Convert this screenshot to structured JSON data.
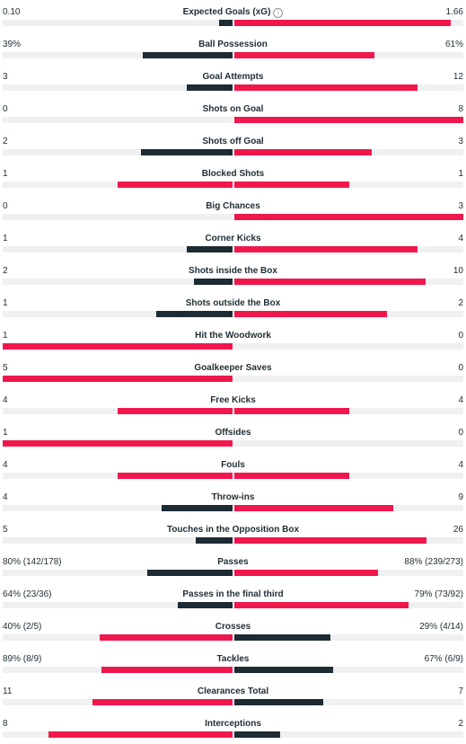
{
  "colors": {
    "better": "#f0174d",
    "worse": "#1d2b33",
    "track": "#eef0f1"
  },
  "stats": [
    {
      "name": "Expected Goals (xG)",
      "home": "0.10",
      "away": "1.66",
      "hv": 0.1,
      "av": 1.66,
      "info": true
    },
    {
      "name": "Ball Possession",
      "home": "39%",
      "away": "61%",
      "hv": 39,
      "av": 61
    },
    {
      "name": "Goal Attempts",
      "home": "3",
      "away": "12",
      "hv": 3,
      "av": 12
    },
    {
      "name": "Shots on Goal",
      "home": "0",
      "away": "8",
      "hv": 0,
      "av": 8
    },
    {
      "name": "Shots off Goal",
      "home": "2",
      "away": "3",
      "hv": 2,
      "av": 3
    },
    {
      "name": "Blocked Shots",
      "home": "1",
      "away": "1",
      "hv": 1,
      "av": 1
    },
    {
      "name": "Big Chances",
      "home": "0",
      "away": "3",
      "hv": 0,
      "av": 3
    },
    {
      "name": "Corner Kicks",
      "home": "1",
      "away": "4",
      "hv": 1,
      "av": 4
    },
    {
      "name": "Shots inside the Box",
      "home": "2",
      "away": "10",
      "hv": 2,
      "av": 10
    },
    {
      "name": "Shots outside the Box",
      "home": "1",
      "away": "2",
      "hv": 1,
      "av": 2
    },
    {
      "name": "Hit the Woodwork",
      "home": "1",
      "away": "0",
      "hv": 1,
      "av": 0
    },
    {
      "name": "Goalkeeper Saves",
      "home": "5",
      "away": "0",
      "hv": 5,
      "av": 0
    },
    {
      "name": "Free Kicks",
      "home": "4",
      "away": "4",
      "hv": 4,
      "av": 4
    },
    {
      "name": "Offsides",
      "home": "1",
      "away": "0",
      "hv": 1,
      "av": 0
    },
    {
      "name": "Fouls",
      "home": "4",
      "away": "4",
      "hv": 4,
      "av": 4
    },
    {
      "name": "Throw-ins",
      "home": "4",
      "away": "9",
      "hv": 4,
      "av": 9
    },
    {
      "name": "Touches in the Opposition Box",
      "home": "5",
      "away": "26",
      "hv": 5,
      "av": 26
    },
    {
      "name": "Passes",
      "home": "80% (142/178)",
      "away": "88% (239/273)",
      "hv": 142,
      "av": 239
    },
    {
      "name": "Passes in the final third",
      "home": "64% (23/36)",
      "away": "79% (73/92)",
      "hv": 23,
      "av": 73
    },
    {
      "name": "Crosses",
      "home": "40% (2/5)",
      "away": "29% (4/14)",
      "hv": 0.4,
      "av": 0.29
    },
    {
      "name": "Tackles",
      "home": "89% (8/9)",
      "away": "67% (6/9)",
      "hv": 0.89,
      "av": 0.67
    },
    {
      "name": "Clearances Total",
      "home": "11",
      "away": "7",
      "hv": 11,
      "av": 7
    },
    {
      "name": "Interceptions",
      "home": "8",
      "away": "2",
      "hv": 8,
      "av": 2
    }
  ]
}
